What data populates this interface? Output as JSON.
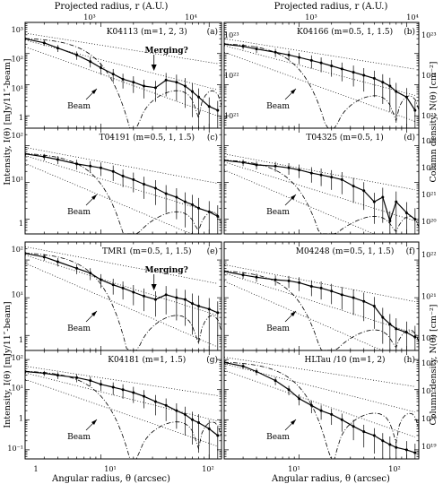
{
  "figure": {
    "top_axis_label": "Projected radius, r (A.U.)",
    "top_ticks": [
      "10³",
      "10⁴"
    ],
    "bottom_axis_label": "Angular radius, θ (arcsec)",
    "bottom_ticks": [
      "1",
      "10¹",
      "10²"
    ],
    "left_axis_label": "Intensity, I(θ) [mJy/11″-beam]",
    "right_axis_label": "Column density, N(θ) [cm⁻²]"
  },
  "chart_data": [
    {
      "type": "line",
      "panel_label": "(a)",
      "title": "K04113 (m=1, 2, 3)",
      "yticks": [
        "10³",
        "10²",
        "10¹",
        "1"
      ],
      "right_ticks": [
        "10²³",
        "10²²",
        "10²¹"
      ],
      "annotation": "Merging?",
      "beam_label": "Beam",
      "ylim": [
        0.4,
        1000
      ],
      "x": [
        2,
        3,
        4,
        6,
        8,
        10,
        13,
        16,
        20,
        25,
        32,
        40,
        50,
        60,
        70,
        80,
        100,
        120
      ],
      "series": [
        {
          "values": [
            300,
            220,
            150,
            90,
            55,
            35,
            22,
            15,
            12,
            9,
            8,
            14,
            12,
            9,
            6,
            4,
            2,
            1.5
          ]
        }
      ]
    },
    {
      "type": "line",
      "panel_label": "(b)",
      "title": "K04166 (m=0.5, 1, 1.5)",
      "yticks": [],
      "right_ticks": [
        "10²³",
        "10²²",
        "10²¹"
      ],
      "annotation": "",
      "beam_label": "Beam",
      "ylim": [
        0.4,
        1000
      ],
      "x": [
        2,
        3,
        4,
        6,
        8,
        10,
        13,
        16,
        20,
        25,
        32,
        40,
        50,
        60,
        70,
        80,
        100,
        120
      ],
      "series": [
        {
          "values": [
            200,
            170,
            140,
            110,
            90,
            75,
            60,
            50,
            40,
            32,
            25,
            20,
            16,
            12,
            9,
            6,
            4,
            1.5
          ]
        }
      ]
    },
    {
      "type": "line",
      "panel_label": "(c)",
      "title": "T04191 (m=0.5, 1, 1.5)",
      "yticks": [
        "10²",
        "10¹",
        "1"
      ],
      "right_ticks": [],
      "annotation": "",
      "beam_label": "Beam",
      "ylim": [
        0.4,
        300
      ],
      "x": [
        2,
        3,
        4,
        6,
        8,
        10,
        13,
        16,
        20,
        25,
        32,
        40,
        50,
        60,
        70,
        80,
        100,
        120
      ],
      "series": [
        {
          "values": [
            60,
            50,
            42,
            32,
            28,
            25,
            20,
            15,
            12,
            9,
            7,
            5,
            4,
            3,
            2.5,
            2,
            1.6,
            1.2
          ]
        }
      ]
    },
    {
      "type": "line",
      "panel_label": "(d)",
      "title": "T04325 (m=0.5, 1)",
      "yticks": [],
      "right_ticks": [
        "10²³",
        "10²²",
        "10²¹",
        "10²⁰"
      ],
      "annotation": "",
      "beam_label": "Beam",
      "ylim": [
        0.4,
        300
      ],
      "x": [
        2,
        3,
        4,
        6,
        8,
        10,
        13,
        16,
        20,
        25,
        32,
        40,
        50,
        60,
        70,
        80,
        100,
        120
      ],
      "series": [
        {
          "values": [
            40,
            35,
            30,
            28,
            25,
            22,
            18,
            16,
            14,
            12,
            8,
            6,
            3,
            4,
            0.9,
            3,
            1.5,
            1
          ]
        }
      ]
    },
    {
      "type": "line",
      "panel_label": "(e)",
      "title": "TMR1 (m=0.5, 1, 1.5)",
      "yticks": [
        "10²",
        "10¹",
        "1"
      ],
      "right_ticks": [],
      "annotation": "Merging?",
      "beam_label": "Beam",
      "ylim": [
        0.4,
        300
      ],
      "x": [
        2,
        3,
        4,
        6,
        8,
        10,
        13,
        16,
        20,
        25,
        32,
        40,
        50,
        60,
        70,
        80,
        100,
        120
      ],
      "series": [
        {
          "values": [
            150,
            120,
            90,
            60,
            45,
            30,
            22,
            18,
            14,
            11,
            9,
            12,
            10,
            9,
            7,
            6,
            5,
            4
          ]
        }
      ]
    },
    {
      "type": "line",
      "panel_label": "(f)",
      "title": "M04248 (m=0.5, 1, 1.5)",
      "yticks": [],
      "right_ticks": [
        "10²²",
        "10²¹",
        "10²⁰"
      ],
      "annotation": "",
      "beam_label": "Beam",
      "ylim": [
        0.4,
        300
      ],
      "x": [
        2,
        3,
        4,
        6,
        8,
        10,
        13,
        16,
        20,
        25,
        32,
        40,
        50,
        60,
        70,
        80,
        100,
        120
      ],
      "series": [
        {
          "values": [
            50,
            40,
            35,
            30,
            28,
            25,
            20,
            18,
            15,
            12,
            10,
            8,
            6,
            3,
            2,
            1.5,
            1.2,
            0.9
          ]
        }
      ]
    },
    {
      "type": "line",
      "panel_label": "(g)",
      "title": "K04181 (m=1, 1.5)",
      "yticks": [
        "10²",
        "10¹",
        "1",
        "10⁻¹"
      ],
      "right_ticks": [],
      "annotation": "",
      "beam_label": "Beam",
      "ylim": [
        0.05,
        200
      ],
      "x": [
        2,
        3,
        4,
        6,
        8,
        10,
        13,
        16,
        20,
        25,
        32,
        40,
        50,
        60,
        70,
        80,
        100,
        120
      ],
      "series": [
        {
          "values": [
            40,
            35,
            30,
            25,
            20,
            15,
            12,
            10,
            8,
            6,
            4,
            3,
            2,
            1.5,
            1,
            0.8,
            0.5,
            0.3
          ]
        }
      ]
    },
    {
      "type": "line",
      "panel_label": "(h)",
      "title": "HLTau /10 (m=1, 2)",
      "yticks": [],
      "right_ticks": [
        "10²²",
        "10²¹",
        "10²⁰",
        "10¹⁹"
      ],
      "annotation": "",
      "beam_label": "Beam",
      "ylim": [
        0.05,
        200
      ],
      "x": [
        2,
        3,
        4,
        6,
        8,
        10,
        13,
        16,
        20,
        25,
        32,
        40,
        50,
        60,
        70,
        80,
        100,
        120
      ],
      "series": [
        {
          "values": [
            80,
            60,
            40,
            20,
            10,
            5,
            3,
            2,
            1.5,
            1,
            0.6,
            0.4,
            0.3,
            0.2,
            0.15,
            0.12,
            0.1,
            0.08
          ]
        }
      ]
    }
  ]
}
